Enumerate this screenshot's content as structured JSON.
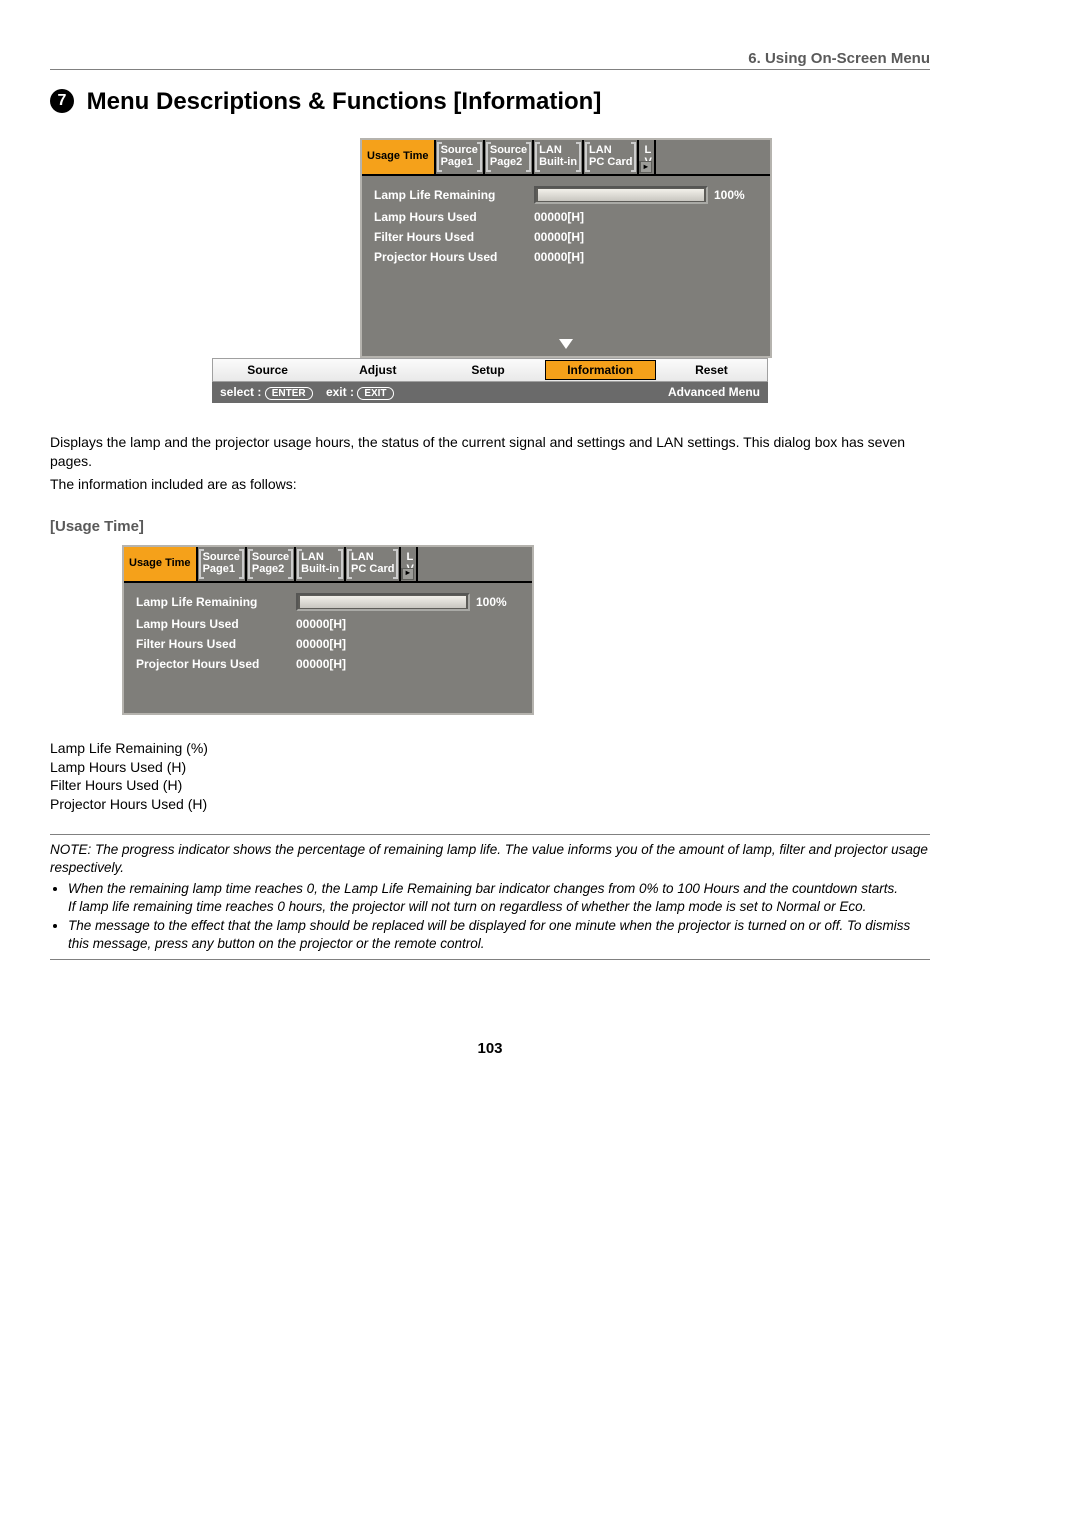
{
  "chapter_header": "6. Using On-Screen Menu",
  "section_number": "7",
  "section_title": "Menu Descriptions & Functions [Information]",
  "osd": {
    "tabs": [
      {
        "line1": "Usage Time",
        "line2": "",
        "active": true
      },
      {
        "line1": "Source",
        "line2": "Page1"
      },
      {
        "line1": "Source",
        "line2": "Page2"
      },
      {
        "line1": "LAN",
        "line2": "Built-in"
      },
      {
        "line1": "LAN",
        "line2": "PC Card"
      },
      {
        "line1": "L",
        "line2": "V",
        "cut": true
      }
    ],
    "rows": {
      "lamp_remaining_label": "Lamp Life Remaining",
      "lamp_remaining_pct": "100%",
      "lamp_hours_label": "Lamp Hours Used",
      "lamp_hours_val": "00000[H]",
      "filter_hours_label": "Filter Hours Used",
      "filter_hours_val": "00000[H]",
      "proj_hours_label": "Projector Hours Used",
      "proj_hours_val": "00000[H]"
    }
  },
  "menubar": {
    "items": [
      "Source",
      "Adjust",
      "Setup",
      "Information",
      "Reset"
    ],
    "active_index": 3
  },
  "hintbar": {
    "select_label": "select :",
    "select_key": "ENTER",
    "exit_label": "exit :",
    "exit_key": "EXIT",
    "right": "Advanced Menu"
  },
  "body": {
    "para1": "Displays the lamp and the projector usage hours, the status of the current signal and settings and LAN settings. This dialog box has seven pages.",
    "para2": "The information included are as follows:",
    "sub_heading": "[Usage Time]",
    "list": [
      "Lamp Life Remaining (%)",
      "Lamp Hours Used (H)",
      "Filter Hours Used (H)",
      "Projector Hours Used (H)"
    ],
    "note_intro": "NOTE: The progress indicator shows the percentage of remaining lamp life. The value informs you of the amount of lamp, filter and projector usage respectively.",
    "note_bullets": [
      "When the remaining lamp time reaches 0, the Lamp Life Remaining bar indicator changes from 0% to 100 Hours and the countdown starts.\nIf lamp life remaining time reaches 0 hours, the projector will not turn on regardless of whether the lamp mode is set to Normal or Eco.",
      "The message to the effect that the lamp should be replaced will be displayed for one minute when the projector is turned on or off. To dismiss this message, press any button on the projector or the remote control."
    ]
  },
  "page_number": "103",
  "colors": {
    "tab_active_bg": "#f5a11a",
    "osd_bg": "#7f7e7a",
    "heading_grey": "#5a5a5a"
  }
}
